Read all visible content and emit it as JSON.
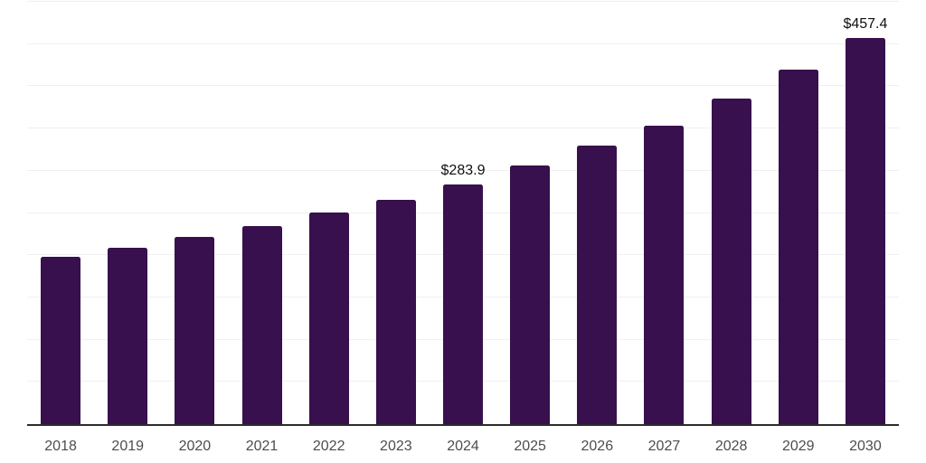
{
  "chart_data": {
    "type": "bar",
    "title": "",
    "xlabel": "",
    "ylabel": "",
    "categories": [
      "2018",
      "2019",
      "2020",
      "2021",
      "2022",
      "2023",
      "2024",
      "2025",
      "2026",
      "2027",
      "2028",
      "2029",
      "2030"
    ],
    "values": [
      198.1,
      208.8,
      222.0,
      234.1,
      250.2,
      265.6,
      283.9,
      306.3,
      329.4,
      353.7,
      385.6,
      419.8,
      457.4
    ],
    "value_labels": [
      {
        "category": "2024",
        "text": "$283.9"
      },
      {
        "category": "2030",
        "text": "$457.4"
      }
    ],
    "ylim": [
      0,
      500
    ],
    "gridline_step": 50,
    "grid": true,
    "y_tick_labels_visible": false,
    "legend_position": "none",
    "bar_color": "#37104D"
  },
  "colors": {
    "background": "#ffffff",
    "bar": "#37104D",
    "gridline": "#f0f0f1",
    "axis_line": "#2b2b2b",
    "x_tick_label": "#4d4d4d",
    "value_label": "#0f0f0f"
  }
}
